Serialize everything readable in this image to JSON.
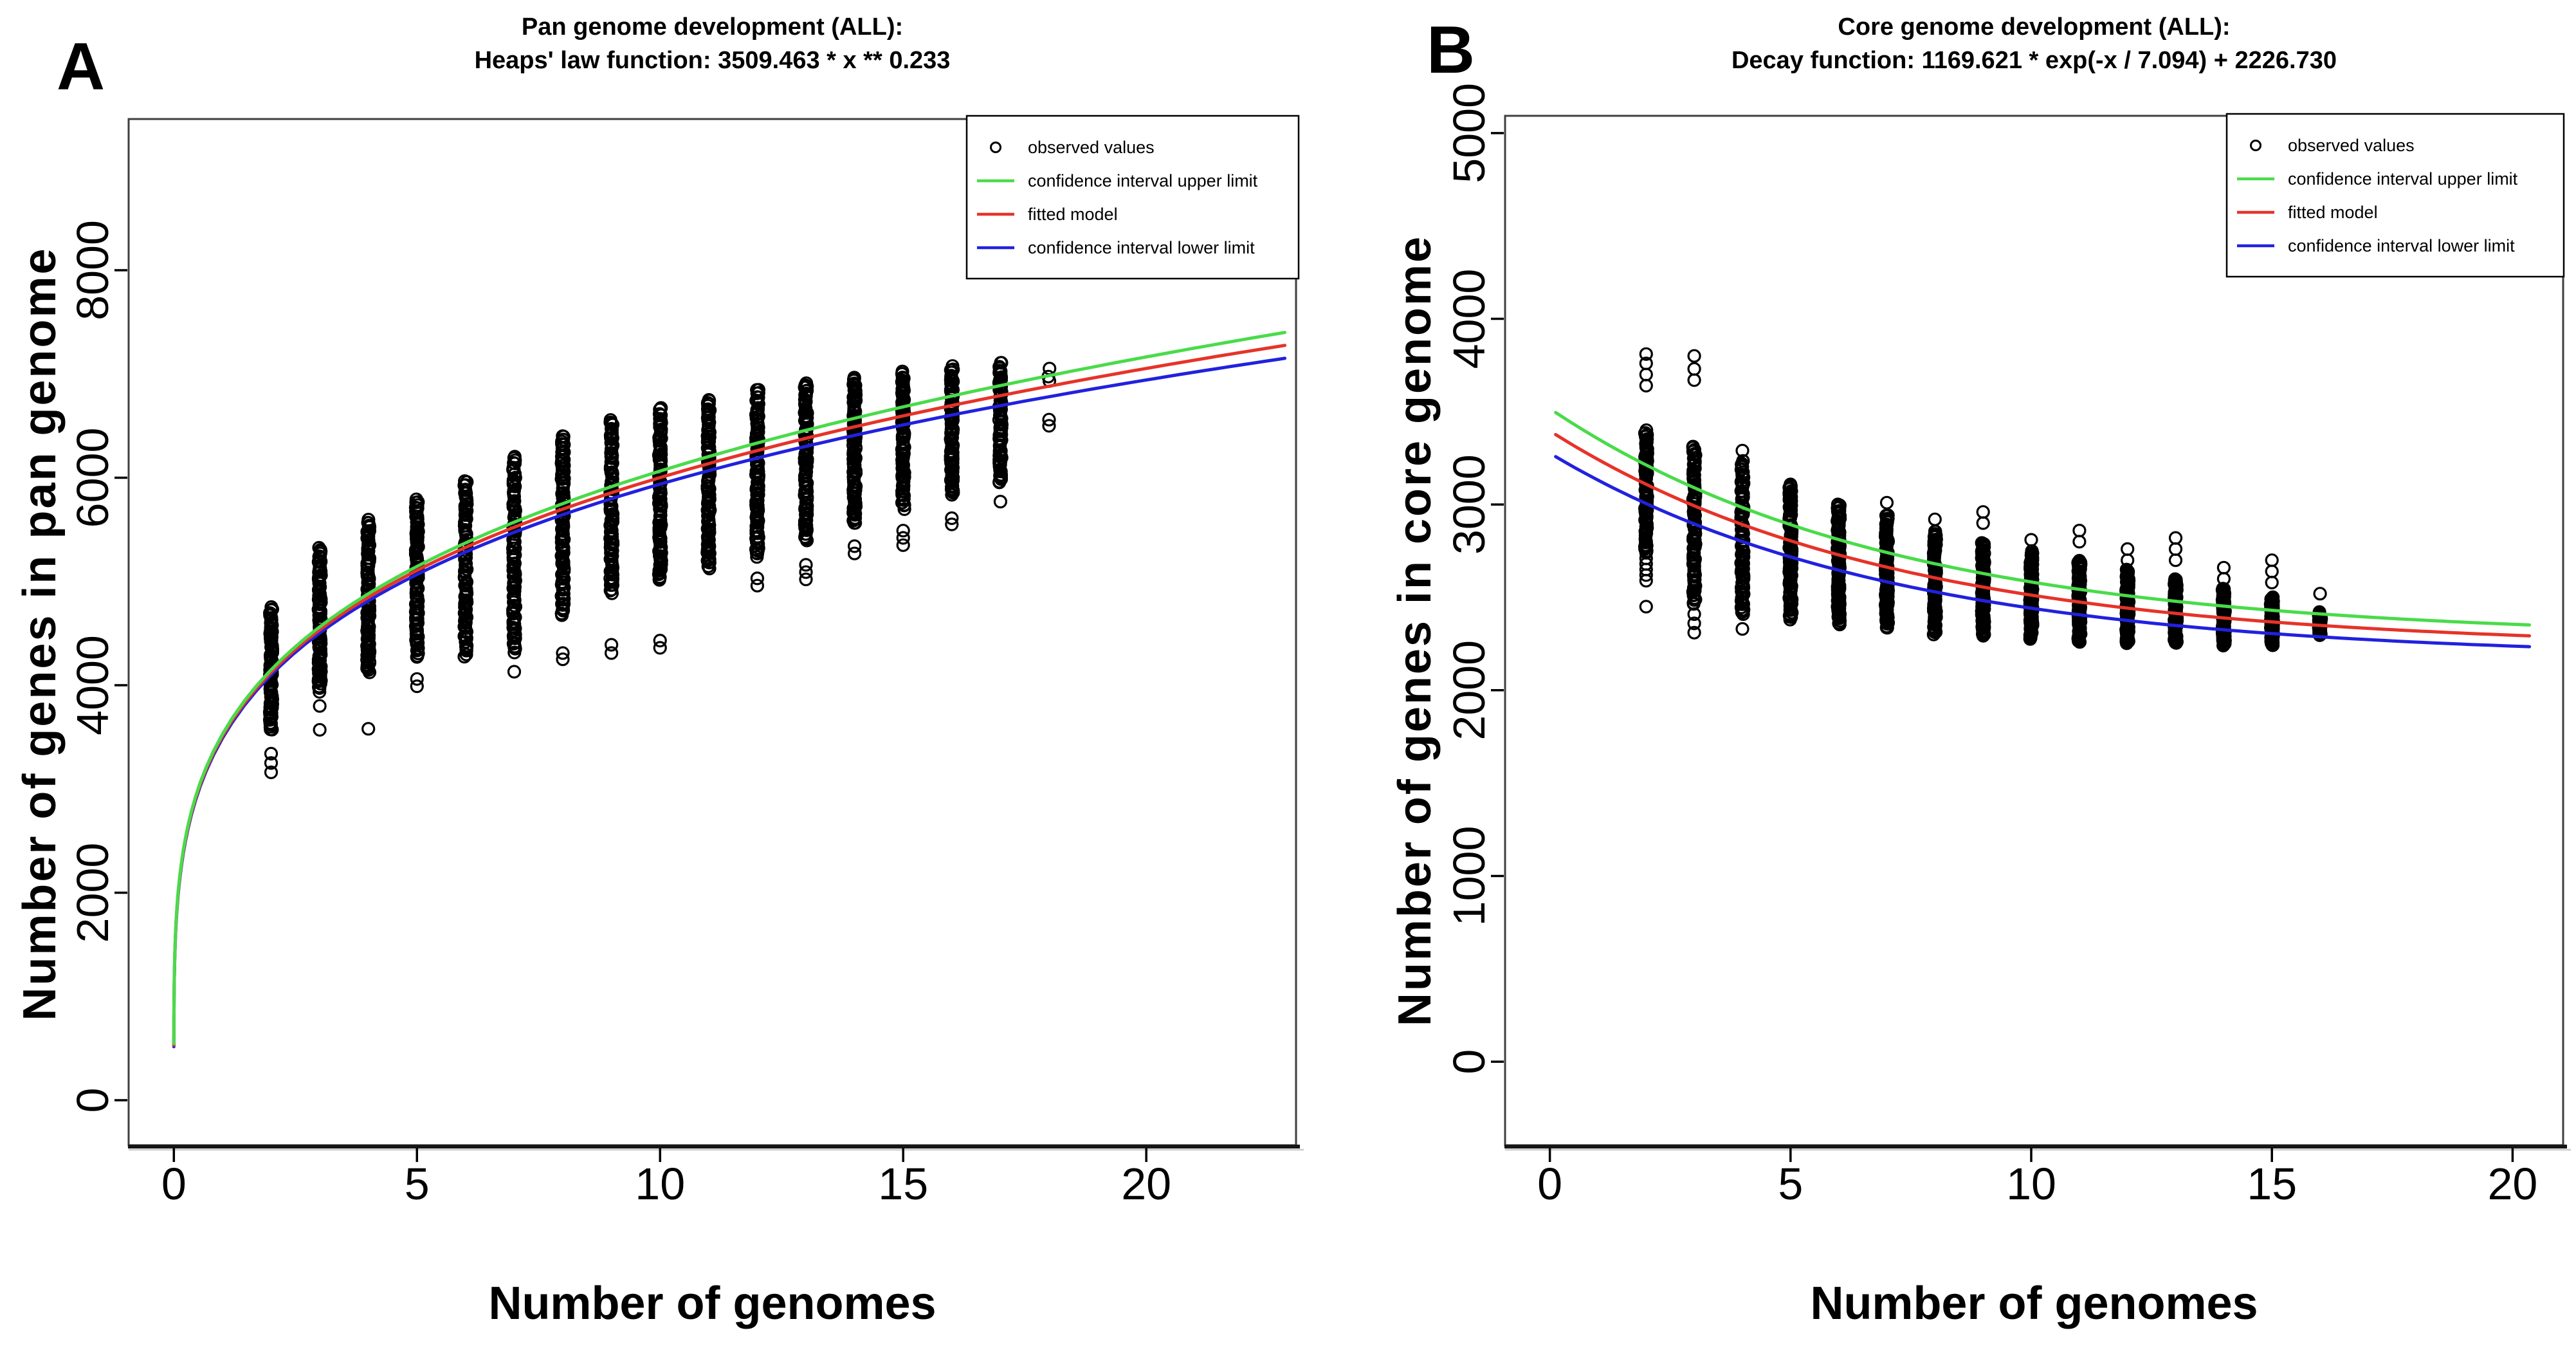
{
  "chart_data": [
    {
      "type": "scatter",
      "panel_label": "A",
      "title1": "Pan genome development (ALL):",
      "title2": "Heaps' law function: 3509.463 * x ** 0.233",
      "xlabel": "Number of genomes",
      "ylabel": "Number of genes in pan genome",
      "x_ticks": [
        0,
        5,
        10,
        15,
        20
      ],
      "y_ticks": [
        0,
        2000,
        4000,
        6000,
        8000
      ],
      "xlim": [
        -0.93,
        23.08
      ],
      "ylim": [
        -434,
        9457
      ],
      "grid": false,
      "legend_position": "top-right",
      "legend": [
        {
          "symbol": "circle",
          "color": "#000000",
          "label": "observed values"
        },
        {
          "symbol": "line",
          "color": "#4ADB4A",
          "label": "confidence interval upper limit"
        },
        {
          "symbol": "line",
          "color": "#E63329",
          "label": "fitted model"
        },
        {
          "symbol": "line",
          "color": "#2121DE",
          "label": "confidence interval lower limit"
        }
      ],
      "colors": {
        "observed": "#000000",
        "upper": "#4ADB4A",
        "fit": "#E63329",
        "lower": "#2121DE"
      },
      "fit": {
        "type": "power",
        "a": 3509.463,
        "b": 0.233,
        "x_start": 0.0003,
        "x_end": 22.85
      },
      "confidence_band": {
        "base": 15,
        "slope": 4.8
      },
      "observed_columns": [
        {
          "x": 2,
          "lo": 3560,
          "hi": 4760,
          "n": 80,
          "below": [
            3340,
            3250,
            3160
          ],
          "above": []
        },
        {
          "x": 3,
          "lo": 3940,
          "hi": 5340,
          "n": 90,
          "below": [
            3800,
            3570
          ],
          "above": []
        },
        {
          "x": 4,
          "lo": 4120,
          "hi": 5600,
          "n": 95,
          "below": [
            3580
          ],
          "above": []
        },
        {
          "x": 5,
          "lo": 4260,
          "hi": 5790,
          "n": 95,
          "below": [
            4060,
            3990
          ],
          "above": []
        },
        {
          "x": 6,
          "lo": 4280,
          "hi": 5980,
          "n": 95,
          "below": [],
          "above": []
        },
        {
          "x": 7,
          "lo": 4310,
          "hi": 6220,
          "n": 95,
          "below": [
            4130
          ],
          "above": []
        },
        {
          "x": 8,
          "lo": 4660,
          "hi": 6410,
          "n": 95,
          "below": [
            4310,
            4250
          ],
          "above": []
        },
        {
          "x": 9,
          "lo": 4890,
          "hi": 6560,
          "n": 95,
          "below": [
            4390,
            4310
          ],
          "above": []
        },
        {
          "x": 10,
          "lo": 5010,
          "hi": 6670,
          "n": 95,
          "below": [
            4430,
            4360
          ],
          "above": []
        },
        {
          "x": 11,
          "lo": 5110,
          "hi": 6770,
          "n": 95,
          "below": [],
          "above": []
        },
        {
          "x": 12,
          "lo": 5240,
          "hi": 6860,
          "n": 95,
          "below": [
            5030,
            4960
          ],
          "above": []
        },
        {
          "x": 13,
          "lo": 5390,
          "hi": 6920,
          "n": 90,
          "below": [
            5160,
            5090,
            5020
          ],
          "above": []
        },
        {
          "x": 14,
          "lo": 5550,
          "hi": 6980,
          "n": 90,
          "below": [
            5340,
            5270
          ],
          "above": []
        },
        {
          "x": 15,
          "lo": 5700,
          "hi": 7030,
          "n": 85,
          "below": [
            5490,
            5420,
            5350
          ],
          "above": []
        },
        {
          "x": 16,
          "lo": 5830,
          "hi": 7080,
          "n": 80,
          "below": [
            5610,
            5550
          ],
          "above": []
        },
        {
          "x": 17,
          "lo": 5940,
          "hi": 7120,
          "n": 70,
          "below": [
            5770
          ],
          "above": []
        },
        {
          "x": 18,
          "lo": 6940,
          "hi": 7060,
          "n": 3,
          "below": [
            6560,
            6500
          ],
          "above": []
        }
      ]
    },
    {
      "type": "scatter",
      "panel_label": "B",
      "title1": "Core genome development (ALL):",
      "title2": "Decay function: 1169.621 * exp(-x / 7.094) + 2226.730",
      "xlabel": "Number of genomes",
      "ylabel": "Number of genes in core genome",
      "x_ticks": [
        0,
        5,
        10,
        15,
        20
      ],
      "y_ticks": [
        0,
        1000,
        2000,
        3000,
        4000,
        5000
      ],
      "xlim": [
        -0.93,
        21.05
      ],
      "ylim": [
        -450,
        5093
      ],
      "grid": false,
      "legend_position": "top-right",
      "legend": [
        {
          "symbol": "circle",
          "color": "#000000",
          "label": "observed values"
        },
        {
          "symbol": "line",
          "color": "#4ADB4A",
          "label": "confidence interval upper limit"
        },
        {
          "symbol": "line",
          "color": "#E63329",
          "label": "fitted model"
        },
        {
          "symbol": "line",
          "color": "#2121DE",
          "label": "confidence interval lower limit"
        }
      ],
      "colors": {
        "observed": "#000000",
        "upper": "#4ADB4A",
        "fit": "#E63329",
        "lower": "#2121DE"
      },
      "fit": {
        "type": "exp_decay",
        "a": 1169.621,
        "tau": 7.094,
        "c": 2226.73,
        "x_start": 0.12,
        "x_end": 20.35
      },
      "confidence_band": {
        "base": 55,
        "amp": 65,
        "tau": 7.0
      },
      "observed_columns": [
        {
          "x": 2,
          "lo": 2750,
          "hi": 3400,
          "n": 85,
          "below": [
            2800,
            2770,
            2740,
            2710,
            2680,
            2650,
            2620,
            2590,
            2450
          ],
          "above": [
            3810,
            3760,
            3700,
            3640
          ]
        },
        {
          "x": 3,
          "lo": 2460,
          "hi": 3320,
          "n": 95,
          "below": [
            2410,
            2360,
            2310
          ],
          "above": [
            3800,
            3730,
            3670
          ]
        },
        {
          "x": 4,
          "lo": 2400,
          "hi": 3240,
          "n": 95,
          "below": [
            2330
          ],
          "above": [
            3290
          ]
        },
        {
          "x": 5,
          "lo": 2380,
          "hi": 3110,
          "n": 95,
          "below": [],
          "above": []
        },
        {
          "x": 6,
          "lo": 2350,
          "hi": 3000,
          "n": 95,
          "below": [],
          "above": []
        },
        {
          "x": 7,
          "lo": 2330,
          "hi": 2950,
          "n": 95,
          "below": [],
          "above": [
            3010
          ]
        },
        {
          "x": 8,
          "lo": 2300,
          "hi": 2860,
          "n": 95,
          "below": [],
          "above": [
            2920
          ]
        },
        {
          "x": 9,
          "lo": 2290,
          "hi": 2800,
          "n": 90,
          "below": [],
          "above": [
            2960,
            2900
          ]
        },
        {
          "x": 10,
          "lo": 2270,
          "hi": 2750,
          "n": 90,
          "below": [],
          "above": [
            2810
          ]
        },
        {
          "x": 11,
          "lo": 2260,
          "hi": 2700,
          "n": 90,
          "below": [],
          "above": [
            2860,
            2800
          ]
        },
        {
          "x": 12,
          "lo": 2250,
          "hi": 2650,
          "n": 85,
          "below": [],
          "above": [
            2760,
            2700
          ]
        },
        {
          "x": 13,
          "lo": 2250,
          "hi": 2600,
          "n": 85,
          "below": [],
          "above": [
            2820,
            2760,
            2700
          ]
        },
        {
          "x": 14,
          "lo": 2240,
          "hi": 2550,
          "n": 80,
          "below": [],
          "above": [
            2660,
            2600
          ]
        },
        {
          "x": 15,
          "lo": 2240,
          "hi": 2500,
          "n": 75,
          "below": [],
          "above": [
            2700,
            2640,
            2580
          ]
        },
        {
          "x": 16,
          "lo": 2290,
          "hi": 2420,
          "n": 25,
          "below": [],
          "above": [
            2520
          ]
        }
      ]
    }
  ]
}
